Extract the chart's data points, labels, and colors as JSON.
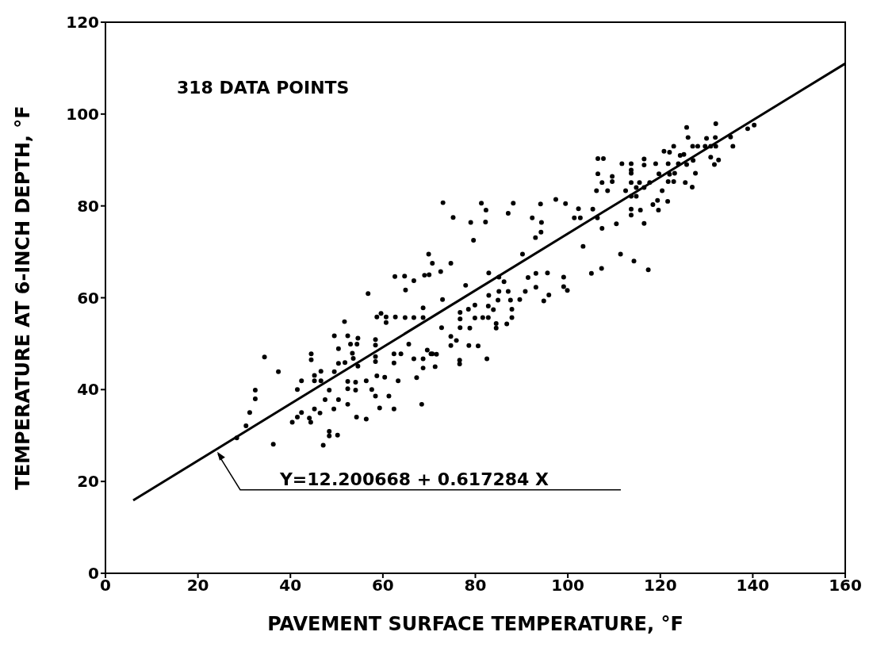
{
  "chart_data": {
    "type": "scatter",
    "xlabel": "PAVEMENT SURFACE TEMPERATURE, °F",
    "ylabel": "TEMPERATURE AT 6-INCH DEPTH, °F",
    "xlim": [
      0,
      160
    ],
    "ylim": [
      0,
      120
    ],
    "xticks": [
      0,
      20,
      40,
      60,
      80,
      100,
      120,
      140,
      160
    ],
    "yticks": [
      0,
      20,
      40,
      60,
      80,
      100,
      120
    ],
    "annotations": [
      "318 DATA POINTS",
      {
        "text": "Y=12.200668 + 0.617284 X",
        "x": 24,
        "y": 27
      }
    ],
    "series": [
      {
        "color": "#000000",
        "marker": "circle",
        "x": [
          62.6,
          64.7,
          66.7,
          69.0,
          70.0,
          64.9,
          56.8,
          68.7,
          59.6,
          58.7,
          60.7,
          62.7,
          64.8,
          66.7,
          68.7,
          60.7,
          51.7,
          49.5,
          52.4,
          54.6,
          53.0,
          54.4,
          58.4,
          58.4,
          50.4,
          53.4,
          65.6,
          69.6,
          70.7,
          44.5,
          44.5,
          34.4,
          37.4,
          46.6,
          45.2,
          49.5,
          50.4,
          51.8,
          53.6,
          58.4,
          58.4,
          62.4,
          63.9,
          62.4,
          66.7,
          68.7,
          68.7,
          71.3,
          54.6,
          42.4,
          45.2,
          46.6,
          52.4,
          54.1,
          56.4,
          58.7,
          60.4,
          63.3,
          67.3,
          41.5,
          32.4,
          32.4,
          48.4,
          52.4,
          54.1,
          57.6,
          58.4,
          61.3,
          47.5,
          50.4,
          52.4,
          59.3,
          62.4,
          68.4,
          31.2,
          42.4,
          45.2,
          46.4,
          40.4,
          41.5,
          44.1,
          44.4,
          49.4,
          54.3,
          56.4,
          48.4,
          48.4,
          50.2,
          47.1,
          36.3,
          30.4,
          28.4,
          73.0,
          81.3,
          82.3,
          88.2,
          94.1,
          97.4,
          99.5,
          102.3,
          105.4,
          75.2,
          79.0,
          82.2,
          87.1,
          92.3,
          94.3,
          94.2,
          93.0,
          101.4,
          102.7,
          106.4,
          110.5,
          107.4,
          79.6,
          103.3,
          111.4,
          90.2,
          69.9,
          70.7,
          74.7,
          72.5,
          82.9,
          85.1,
          91.4,
          93.1,
          95.6,
          99.1,
          105.1,
          107.3,
          86.2,
          85.1,
          87.1,
          90.8,
          93.1,
          99.1,
          99.9,
          95.9,
          94.8,
          77.9,
          82.9,
          84.9,
          87.6,
          89.6,
          72.9,
          79.9,
          78.5,
          82.8,
          83.9,
          87.9,
          87.9,
          76.7,
          76.7,
          79.9,
          81.6,
          82.8,
          84.5,
          84.5,
          86.8,
          78.8,
          76.7,
          72.7,
          74.7,
          75.9,
          74.7,
          78.6,
          80.6,
          82.5,
          76.6,
          76.6,
          70.4,
          71.6,
          125.7,
          132.0,
          126.0,
          130.0,
          131.9,
          135.2,
          122.9,
          127.0,
          128.1,
          129.7,
          130.9,
          132.0,
          120.8,
          122.0,
          124.3,
          125.1,
          106.5,
          107.7,
          111.7,
          113.7,
          116.5,
          116.5,
          119.0,
          121.7,
          123.9,
          125.7,
          127.1,
          113.7,
          113.7,
          106.5,
          119.7,
          122.0,
          123.1,
          127.6,
          109.6,
          109.6,
          107.4,
          113.7,
          115.5,
          117.7,
          121.7,
          122.9,
          125.4,
          126.9,
          114.8,
          116.5,
          106.2,
          108.6,
          112.5,
          120.4,
          130.9,
          132.6,
          131.7,
          135.7,
          138.9,
          140.3,
          113.7,
          114.8,
          119.4,
          121.6,
          118.4,
          113.7,
          115.7,
          119.6,
          113.7,
          116.5,
          114.3,
          117.4
        ],
        "values": [
          64.6,
          64.7,
          63.7,
          64.9,
          65.0,
          61.7,
          60.9,
          57.8,
          56.6,
          55.8,
          55.8,
          55.8,
          55.7,
          55.7,
          55.7,
          54.6,
          54.8,
          51.7,
          51.7,
          51.2,
          49.9,
          49.9,
          50.9,
          49.7,
          48.9,
          47.9,
          49.9,
          48.6,
          47.8,
          47.8,
          46.5,
          47.1,
          43.9,
          44.0,
          43.1,
          43.9,
          45.7,
          45.9,
          46.8,
          47.2,
          46.1,
          47.8,
          47.8,
          45.8,
          46.7,
          46.7,
          44.7,
          45.0,
          45.1,
          41.9,
          41.9,
          41.9,
          41.8,
          41.6,
          41.9,
          43.0,
          42.7,
          41.9,
          42.6,
          40.0,
          39.9,
          38.0,
          39.9,
          40.2,
          39.9,
          40.0,
          38.6,
          38.6,
          37.8,
          37.8,
          36.8,
          36.0,
          35.8,
          36.8,
          35.0,
          35.0,
          35.8,
          34.9,
          32.9,
          34.0,
          33.8,
          32.9,
          35.8,
          34.0,
          33.6,
          30.9,
          29.9,
          30.1,
          27.9,
          28.1,
          32.1,
          29.5,
          80.7,
          80.6,
          79.1,
          80.6,
          80.4,
          81.4,
          80.5,
          79.4,
          79.3,
          77.5,
          76.4,
          76.5,
          78.4,
          77.4,
          76.4,
          74.3,
          73.1,
          77.4,
          77.4,
          77.4,
          76.1,
          75.1,
          72.5,
          71.2,
          69.5,
          69.5,
          69.5,
          67.5,
          67.5,
          65.7,
          65.4,
          64.5,
          64.4,
          65.3,
          65.4,
          64.5,
          65.3,
          66.4,
          63.5,
          61.4,
          61.4,
          61.4,
          62.3,
          62.4,
          61.6,
          60.6,
          59.3,
          62.7,
          60.5,
          59.5,
          59.5,
          59.6,
          59.6,
          58.4,
          57.5,
          58.2,
          57.4,
          57.5,
          55.7,
          56.8,
          55.4,
          55.6,
          55.7,
          55.7,
          54.4,
          53.4,
          54.3,
          53.4,
          53.5,
          53.5,
          51.6,
          50.7,
          49.6,
          49.6,
          49.5,
          46.7,
          46.4,
          45.6,
          47.8,
          47.7,
          97.1,
          97.9,
          94.9,
          94.7,
          94.9,
          95.0,
          93.0,
          93.0,
          93.0,
          93.0,
          93.0,
          93.0,
          91.9,
          91.7,
          91.0,
          91.2,
          90.3,
          90.3,
          89.2,
          89.2,
          90.2,
          88.9,
          89.2,
          89.2,
          89.2,
          89.0,
          89.9,
          87.8,
          87.1,
          87.0,
          87.0,
          86.9,
          87.1,
          87.1,
          86.4,
          85.3,
          85.1,
          85.1,
          85.1,
          85.1,
          85.3,
          85.3,
          85.1,
          84.1,
          84.0,
          84.0,
          83.3,
          83.3,
          83.3,
          83.3,
          90.6,
          90.0,
          89.0,
          93.0,
          96.8,
          97.6,
          82.1,
          82.1,
          81.2,
          81.0,
          80.3,
          79.3,
          79.1,
          79.1,
          78.0,
          76.2,
          68.0,
          66.1
        ]
      },
      {
        "type": "line",
        "color": "#000000",
        "marker": "none",
        "line_style": "solid",
        "x": [
          6,
          160
        ],
        "values": [
          15.9,
          111.0
        ]
      }
    ]
  }
}
